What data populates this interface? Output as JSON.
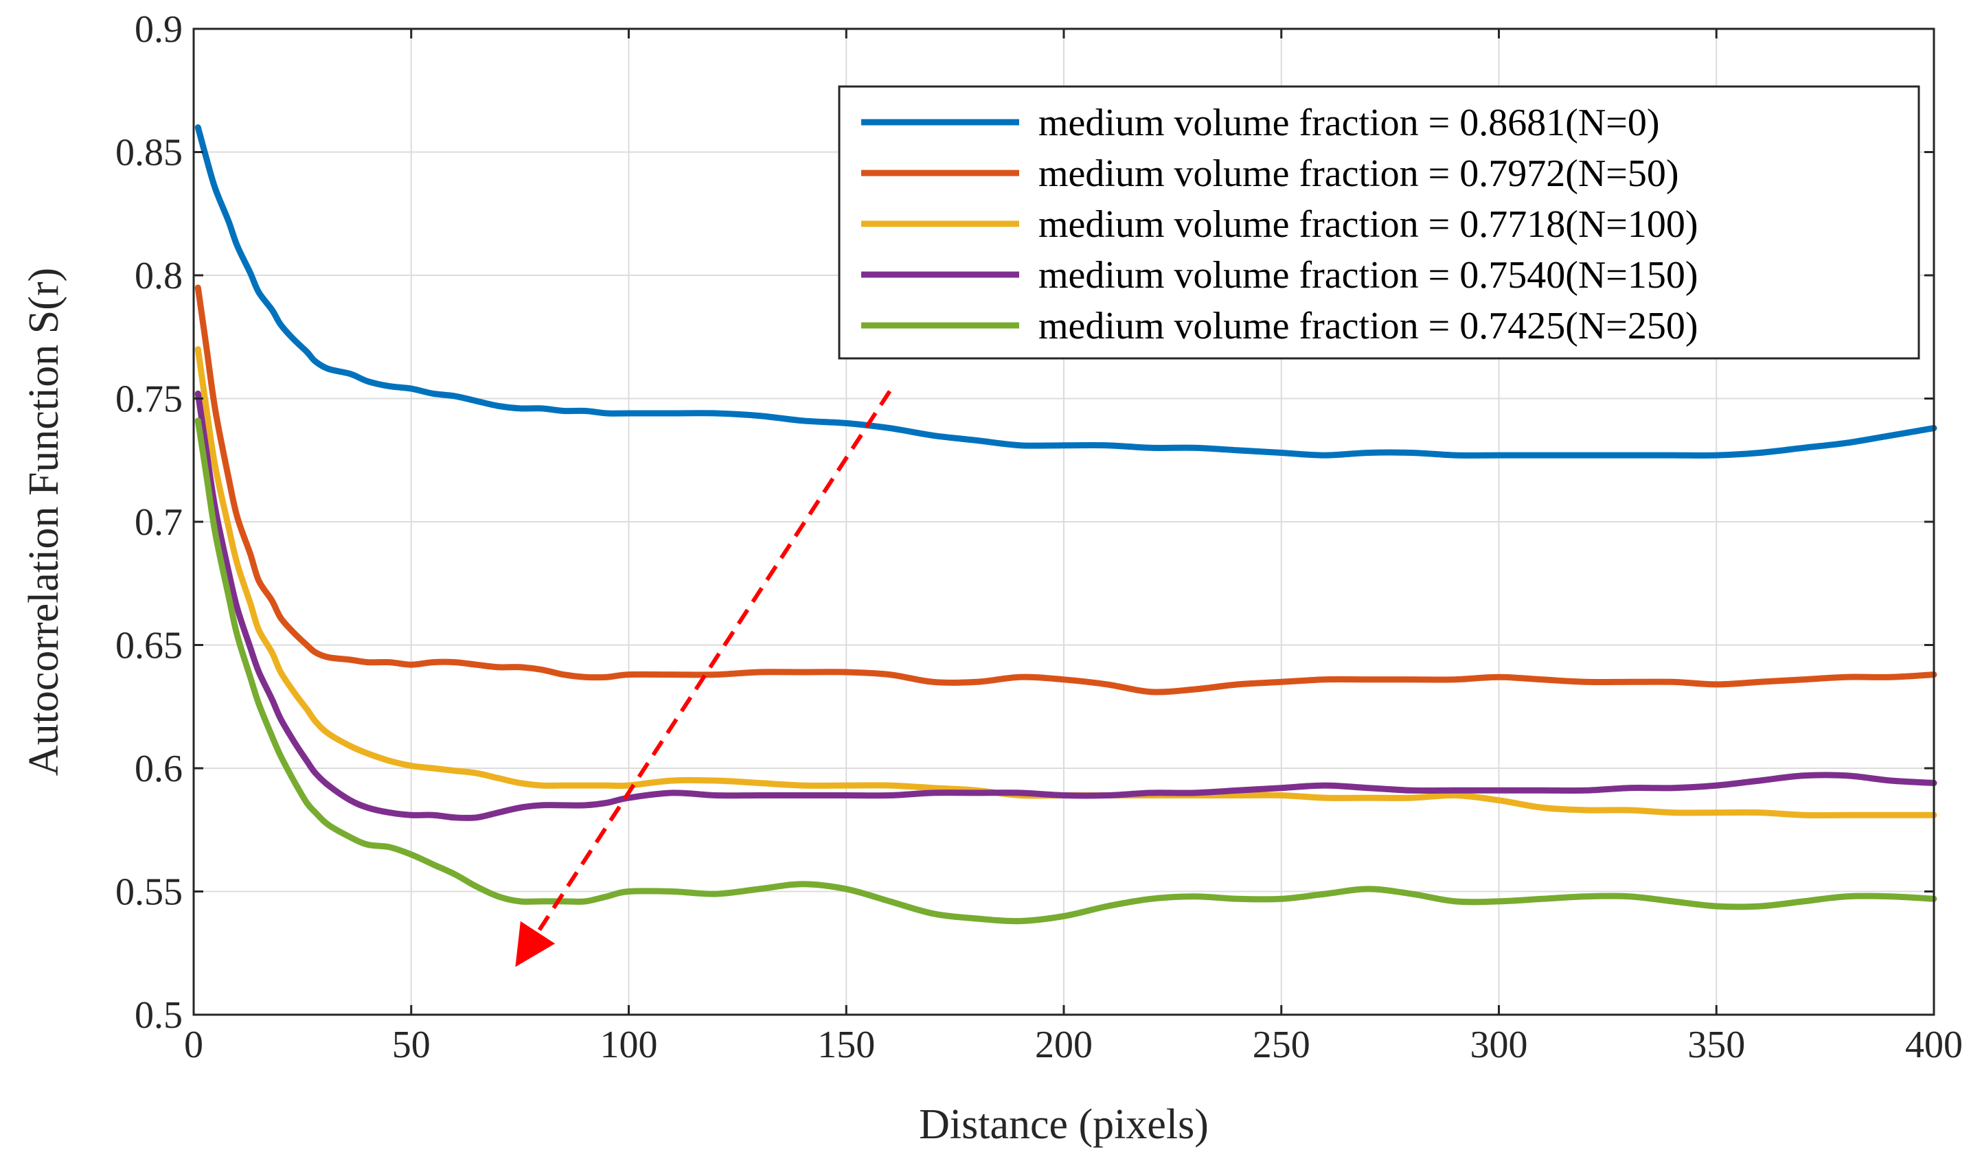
{
  "chart_data": {
    "type": "line",
    "title": "",
    "xlabel": "Distance (pixels)",
    "ylabel": "Autocorrelation Function S(r)",
    "xlim": [
      0,
      400
    ],
    "ylim": [
      0.5,
      0.9
    ],
    "xticks": [
      0,
      50,
      100,
      150,
      200,
      250,
      300,
      350,
      400
    ],
    "xtick_labels": [
      "0",
      "50",
      "100",
      "150",
      "200",
      "250",
      "300",
      "350",
      "400"
    ],
    "yticks": [
      0.5,
      0.55,
      0.6,
      0.65,
      0.7,
      0.75,
      0.8,
      0.85,
      0.9
    ],
    "ytick_labels": [
      "0.5",
      "0.55",
      "0.6",
      "0.65",
      "0.7",
      "0.75",
      "0.8",
      "0.85",
      "0.9"
    ],
    "grid": true,
    "legend_position": "top-right",
    "series": [
      {
        "name": "medium volume fraction = 0.8681(N=0)",
        "color": "#0072BD",
        "x": [
          1,
          3,
          5,
          8,
          10,
          13,
          15,
          18,
          20,
          23,
          26,
          28,
          31,
          36,
          40,
          45,
          50,
          55,
          60,
          65,
          70,
          75,
          80,
          85,
          90,
          95,
          100,
          110,
          120,
          130,
          140,
          150,
          160,
          170,
          180,
          190,
          200,
          210,
          220,
          230,
          240,
          250,
          260,
          270,
          280,
          290,
          300,
          310,
          320,
          330,
          340,
          350,
          360,
          370,
          380,
          390,
          400
        ],
        "values": [
          0.86,
          0.847,
          0.835,
          0.822,
          0.812,
          0.801,
          0.793,
          0.786,
          0.78,
          0.774,
          0.769,
          0.765,
          0.762,
          0.76,
          0.757,
          0.755,
          0.754,
          0.752,
          0.751,
          0.749,
          0.747,
          0.746,
          0.746,
          0.745,
          0.745,
          0.744,
          0.744,
          0.744,
          0.744,
          0.743,
          0.741,
          0.74,
          0.738,
          0.735,
          0.733,
          0.731,
          0.731,
          0.731,
          0.73,
          0.73,
          0.729,
          0.728,
          0.727,
          0.728,
          0.728,
          0.727,
          0.727,
          0.727,
          0.727,
          0.727,
          0.727,
          0.727,
          0.728,
          0.73,
          0.732,
          0.735,
          0.738
        ]
      },
      {
        "name": "medium volume fraction = 0.7972(N=50)",
        "color": "#D95319",
        "x": [
          1,
          3,
          5,
          8,
          10,
          13,
          15,
          18,
          20,
          23,
          26,
          28,
          31,
          36,
          40,
          45,
          50,
          55,
          60,
          65,
          70,
          75,
          80,
          85,
          90,
          95,
          100,
          110,
          120,
          130,
          140,
          150,
          160,
          170,
          180,
          190,
          200,
          210,
          220,
          230,
          240,
          250,
          260,
          270,
          280,
          290,
          300,
          310,
          320,
          330,
          340,
          350,
          360,
          370,
          380,
          390,
          400
        ],
        "values": [
          0.795,
          0.77,
          0.745,
          0.718,
          0.702,
          0.687,
          0.676,
          0.668,
          0.661,
          0.655,
          0.65,
          0.647,
          0.645,
          0.644,
          0.643,
          0.643,
          0.642,
          0.643,
          0.643,
          0.642,
          0.641,
          0.641,
          0.64,
          0.638,
          0.637,
          0.637,
          0.638,
          0.638,
          0.638,
          0.639,
          0.639,
          0.639,
          0.638,
          0.635,
          0.635,
          0.637,
          0.636,
          0.634,
          0.631,
          0.632,
          0.634,
          0.635,
          0.636,
          0.636,
          0.636,
          0.636,
          0.637,
          0.636,
          0.635,
          0.635,
          0.635,
          0.634,
          0.635,
          0.636,
          0.637,
          0.637,
          0.638
        ]
      },
      {
        "name": "medium volume fraction = 0.7718(N=100)",
        "color": "#EDB120",
        "x": [
          1,
          3,
          5,
          8,
          10,
          13,
          15,
          18,
          20,
          23,
          26,
          28,
          31,
          36,
          40,
          45,
          50,
          55,
          60,
          65,
          70,
          75,
          80,
          85,
          90,
          95,
          100,
          110,
          120,
          130,
          140,
          150,
          160,
          170,
          180,
          190,
          200,
          210,
          220,
          230,
          240,
          250,
          260,
          270,
          280,
          290,
          300,
          310,
          320,
          330,
          340,
          350,
          360,
          370,
          380,
          390,
          400
        ],
        "values": [
          0.77,
          0.745,
          0.722,
          0.698,
          0.683,
          0.667,
          0.656,
          0.647,
          0.639,
          0.631,
          0.624,
          0.619,
          0.614,
          0.609,
          0.606,
          0.603,
          0.601,
          0.6,
          0.599,
          0.598,
          0.596,
          0.594,
          0.593,
          0.593,
          0.593,
          0.593,
          0.593,
          0.595,
          0.595,
          0.594,
          0.593,
          0.593,
          0.593,
          0.592,
          0.591,
          0.589,
          0.589,
          0.589,
          0.589,
          0.589,
          0.589,
          0.589,
          0.588,
          0.588,
          0.588,
          0.589,
          0.587,
          0.584,
          0.583,
          0.583,
          0.582,
          0.582,
          0.582,
          0.581,
          0.581,
          0.581,
          0.581
        ]
      },
      {
        "name": "medium volume fraction = 0.7540(N=150)",
        "color": "#7E2F8E",
        "x": [
          1,
          3,
          5,
          8,
          10,
          13,
          15,
          18,
          20,
          23,
          26,
          28,
          31,
          36,
          40,
          45,
          50,
          55,
          60,
          65,
          70,
          75,
          80,
          85,
          90,
          95,
          100,
          110,
          120,
          130,
          140,
          150,
          160,
          170,
          180,
          190,
          200,
          210,
          220,
          230,
          240,
          250,
          260,
          270,
          280,
          290,
          300,
          310,
          320,
          330,
          340,
          350,
          360,
          370,
          380,
          390,
          400
        ],
        "values": [
          0.752,
          0.728,
          0.705,
          0.68,
          0.665,
          0.649,
          0.639,
          0.628,
          0.62,
          0.611,
          0.603,
          0.598,
          0.593,
          0.587,
          0.584,
          0.582,
          0.581,
          0.581,
          0.58,
          0.58,
          0.582,
          0.584,
          0.585,
          0.585,
          0.585,
          0.586,
          0.588,
          0.59,
          0.589,
          0.589,
          0.589,
          0.589,
          0.589,
          0.59,
          0.59,
          0.59,
          0.589,
          0.589,
          0.59,
          0.59,
          0.591,
          0.592,
          0.593,
          0.592,
          0.591,
          0.591,
          0.591,
          0.591,
          0.591,
          0.592,
          0.592,
          0.593,
          0.595,
          0.597,
          0.597,
          0.595,
          0.594
        ]
      },
      {
        "name": "medium volume fraction = 0.7425(N=250)",
        "color": "#77AC30",
        "x": [
          1,
          3,
          5,
          8,
          10,
          13,
          15,
          18,
          20,
          23,
          26,
          28,
          31,
          36,
          40,
          45,
          50,
          55,
          60,
          65,
          70,
          75,
          80,
          85,
          90,
          95,
          100,
          110,
          120,
          130,
          140,
          150,
          160,
          170,
          180,
          190,
          200,
          210,
          220,
          230,
          240,
          250,
          260,
          270,
          280,
          290,
          300,
          310,
          320,
          330,
          340,
          350,
          360,
          370,
          380,
          390,
          400
        ],
        "values": [
          0.741,
          0.718,
          0.695,
          0.67,
          0.654,
          0.637,
          0.626,
          0.613,
          0.605,
          0.595,
          0.586,
          0.582,
          0.577,
          0.572,
          0.569,
          0.568,
          0.565,
          0.561,
          0.557,
          0.552,
          0.548,
          0.546,
          0.546,
          0.546,
          0.546,
          0.548,
          0.55,
          0.55,
          0.549,
          0.551,
          0.553,
          0.551,
          0.546,
          0.541,
          0.539,
          0.538,
          0.54,
          0.544,
          0.547,
          0.548,
          0.547,
          0.547,
          0.549,
          0.551,
          0.549,
          0.546,
          0.546,
          0.547,
          0.548,
          0.548,
          0.546,
          0.544,
          0.544,
          0.546,
          0.548,
          0.548,
          0.547
        ]
      }
    ],
    "annotations": [
      {
        "type": "arrow",
        "style": "dashed",
        "color": "#FF0000",
        "from": [
          160,
          0.753
        ],
        "to": [
          76,
          0.525
        ]
      }
    ]
  }
}
